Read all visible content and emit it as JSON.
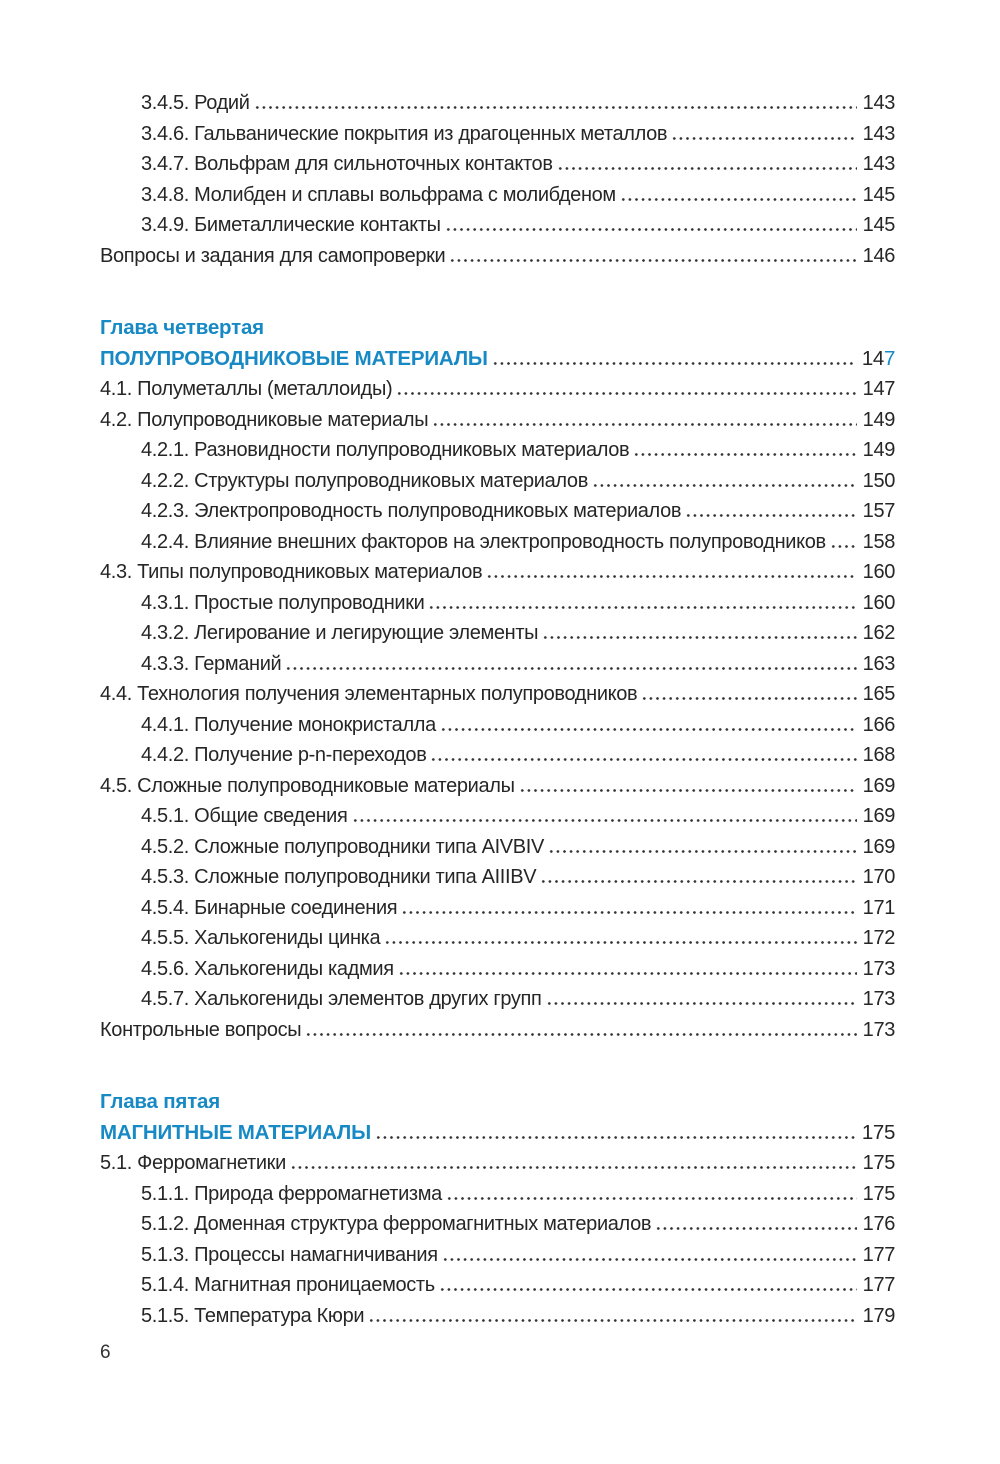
{
  "colors": {
    "accent_blue": "#1789c4",
    "body_text": "#262626"
  },
  "footer": {
    "page_number": "6"
  },
  "toc": {
    "blocks": [
      {
        "type": "list",
        "rows": [
          {
            "label": "3.4.5. Родий",
            "page": "143",
            "indent": 1
          },
          {
            "label": "3.4.6. Гальванические покрытия из драгоценных металлов",
            "page": "143",
            "indent": 1
          },
          {
            "label": "3.4.7. Вольфрам для сильноточных контактов",
            "page": "143",
            "indent": 1
          },
          {
            "label": "3.4.8. Молибден и сплавы вольфрама с молибденом",
            "page": "145",
            "indent": 1
          },
          {
            "label": "3.4.9. Биметаллические контакты",
            "page": "145",
            "indent": 1
          },
          {
            "label": "Вопросы и задания для самопроверки",
            "page": "146",
            "indent": 0
          }
        ]
      },
      {
        "type": "chapter",
        "chapter_label": "Глава четвертая",
        "chapter_title": "ПОЛУПРОВОДНИКОВЫЕ МАТЕРИАЛЫ",
        "chapter_page_main": "14",
        "chapter_page_accent": "7",
        "rows": [
          {
            "label": "4.1. Полуметаллы (металлоиды)",
            "page": "147",
            "indent": 0
          },
          {
            "label": "4.2. Полупроводниковые материалы",
            "page": "149",
            "indent": 0
          },
          {
            "label": "4.2.1. Разновидности полупроводниковых материалов",
            "page": "149",
            "indent": 1
          },
          {
            "label": "4.2.2. Структуры полупроводниковых материалов",
            "page": "150",
            "indent": 1
          },
          {
            "label": "4.2.3. Электропроводность полупроводниковых материалов",
            "page": "157",
            "indent": 1
          },
          {
            "label": "4.2.4. Влияние внешних факторов на электропроводность полупроводников",
            "page": "158",
            "indent": 1
          },
          {
            "label": "4.3. Типы полупроводниковых материалов",
            "page": "160",
            "indent": 0
          },
          {
            "label": "4.3.1. Простые полупроводники",
            "page": "160",
            "indent": 1
          },
          {
            "label": "4.3.2. Легирование и легирующие элементы",
            "page": "162",
            "indent": 1
          },
          {
            "label": "4.3.3. Германий",
            "page": "163",
            "indent": 1
          },
          {
            "label": "4.4. Технология получения элементарных полупроводников",
            "page": "165",
            "indent": 0
          },
          {
            "label": "4.4.1. Получение монокристалла",
            "page": "166",
            "indent": 1
          },
          {
            "label": "4.4.2. Получение p-n-переходов",
            "page": "168",
            "indent": 1
          },
          {
            "label": "4.5. Сложные полупроводниковые материалы",
            "page": "169",
            "indent": 0
          },
          {
            "label": "4.5.1. Общие сведения",
            "page": "169",
            "indent": 1
          },
          {
            "label": "4.5.2. Сложные полупроводники типа AIVBIV",
            "page": "169",
            "indent": 1
          },
          {
            "label": "4.5.3. Сложные полупроводники типа AIIIBV",
            "page": "170",
            "indent": 1
          },
          {
            "label": "4.5.4. Бинарные соединения",
            "page": "171",
            "indent": 1
          },
          {
            "label": "4.5.5. Халькогениды цинка",
            "page": "172",
            "indent": 1
          },
          {
            "label": "4.5.6. Халькогениды кадмия",
            "page": "173",
            "indent": 1
          },
          {
            "label": "4.5.7. Халькогениды элементов других групп",
            "page": "173",
            "indent": 1
          },
          {
            "label": "Контрольные вопросы",
            "page": "173",
            "indent": 0
          }
        ]
      },
      {
        "type": "chapter",
        "chapter_label": "Глава пятая",
        "chapter_title": "МАГНИТНЫЕ МАТЕРИАЛЫ",
        "chapter_page_main": "175",
        "chapter_page_accent": "",
        "rows": [
          {
            "label": "5.1. Ферромагнетики",
            "page": "175",
            "indent": 0
          },
          {
            "label": "5.1.1. Природа ферромагнетизма",
            "page": "175",
            "indent": 1
          },
          {
            "label": "5.1.2. Доменная структура ферромагнитных материалов",
            "page": "176",
            "indent": 1
          },
          {
            "label": "5.1.3. Процессы намагничивания",
            "page": "177",
            "indent": 1
          },
          {
            "label": "5.1.4. Магнитная проницаемость",
            "page": "177",
            "indent": 1
          },
          {
            "label": "5.1.5. Температура Кюри",
            "page": "179",
            "indent": 1
          }
        ]
      }
    ]
  }
}
